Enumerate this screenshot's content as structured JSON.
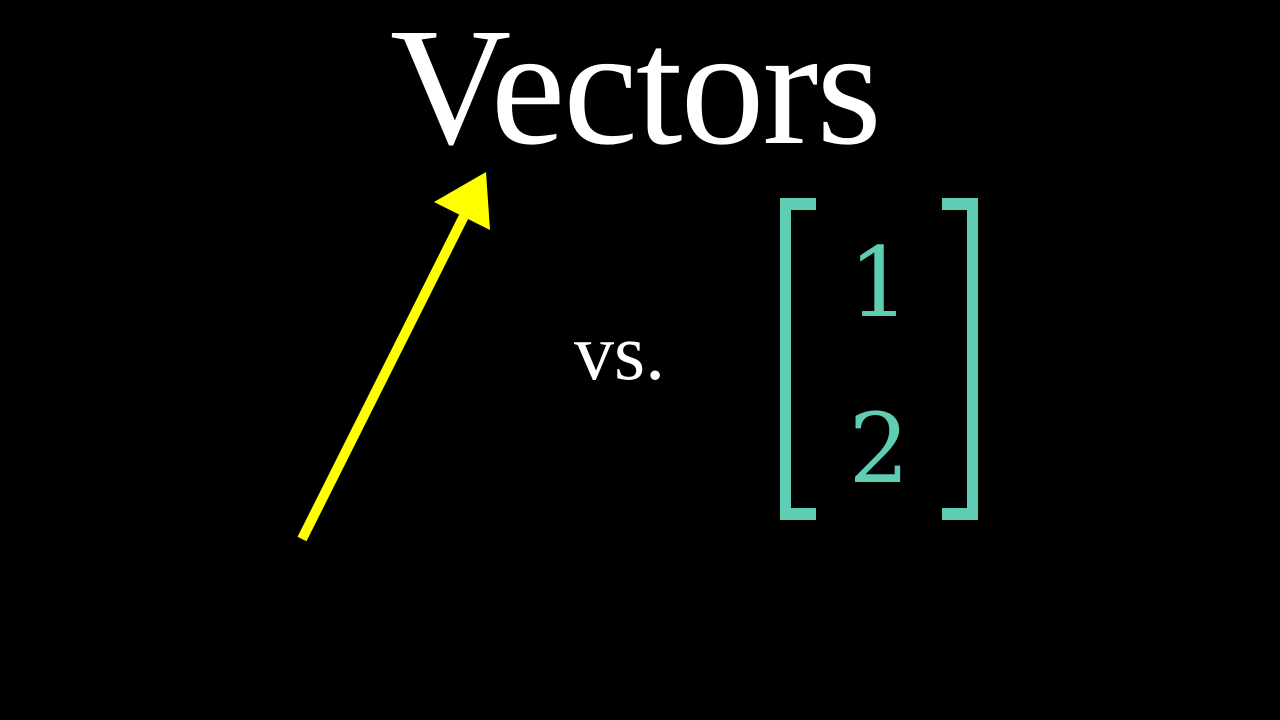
{
  "title": "Vectors",
  "comparison_word": "vs.",
  "arrow": {
    "icon": "vector-arrow-icon",
    "color": "#ffff00"
  },
  "column_vector": {
    "entries": [
      "1",
      "2"
    ],
    "color": "#5fcdb4"
  },
  "colors": {
    "background": "#000000",
    "text": "#ffffff"
  }
}
